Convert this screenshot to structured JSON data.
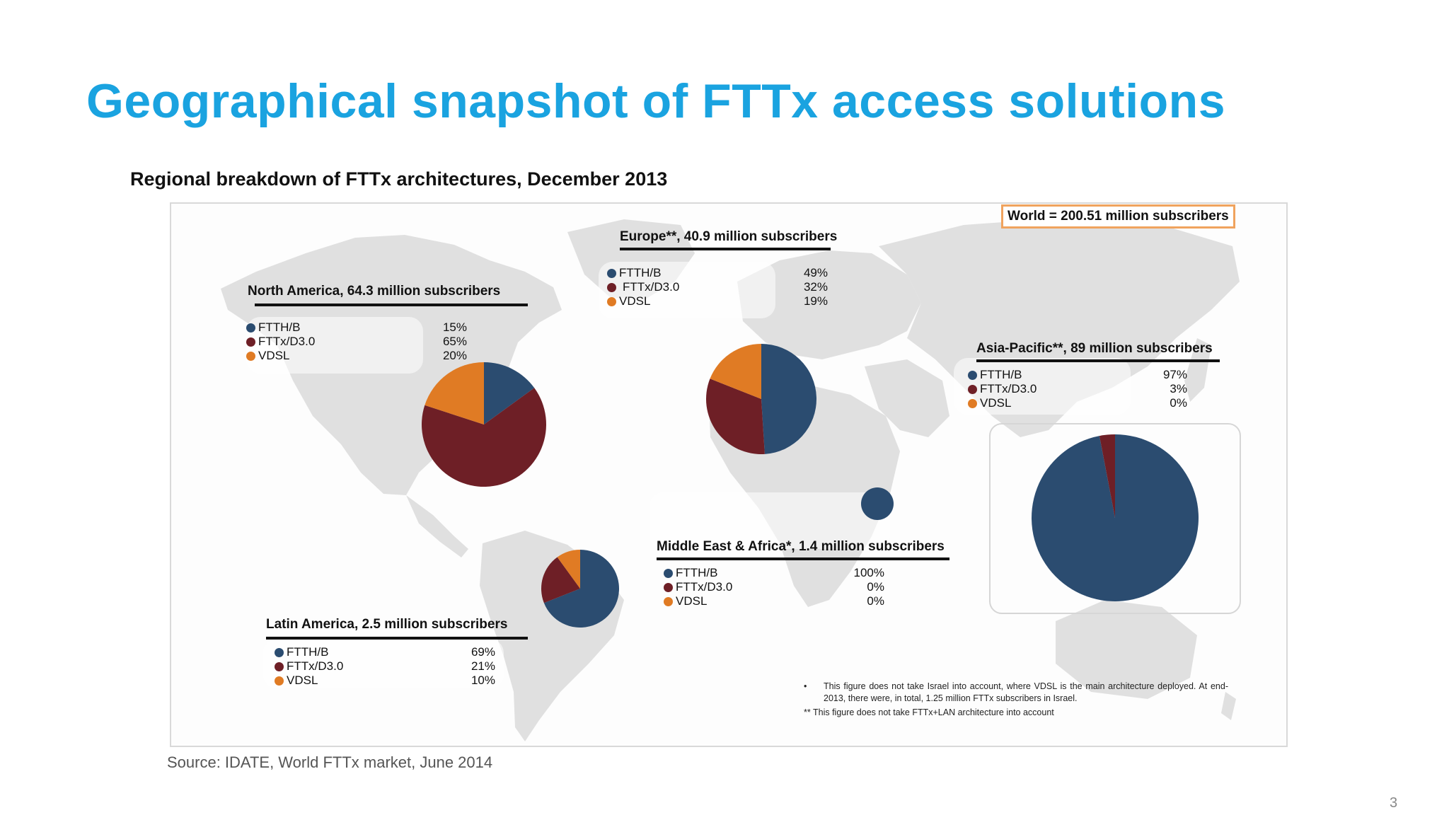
{
  "slide": {
    "title": "Geographical snapshot of FTTx access solutions",
    "subtitle": "Regional breakdown of FTTx architectures, December 2013",
    "world_total": "World = 200.51 million subscribers",
    "source": "Source: IDATE, World FTTx market, June 2014",
    "page_number": "3",
    "notes": {
      "note1_bullet": "•",
      "note1": "This figure does not take Israel into account, where VDSL is the main architecture deployed. At end-2013, there were, in total, 1.25 million FTTx subscribers in Israel.",
      "note2": "** This figure does not take FTTx+LAN architecture into account"
    }
  },
  "colors": {
    "FTTH/B": "#2b4c70",
    "FTTx/D3.0": "#6e1f26",
    "VDSL": "#e07b24",
    "title": "#1aa3e0",
    "map_land": "#dedede"
  },
  "legend_labels": [
    "FTTH/B",
    "FTTx/D3.0",
    "VDSL"
  ],
  "chart_data": [
    {
      "type": "pie",
      "title": "North America, 64.3 million subscribers",
      "categories": [
        "FTTH/B",
        "FTTx/D3.0",
        "VDSL"
      ],
      "values": [
        15,
        65,
        20
      ],
      "labels": [
        "15%",
        "65%",
        "20%"
      ]
    },
    {
      "type": "pie",
      "title": "Europe**, 40.9 million subscribers",
      "categories": [
        "FTTH/B",
        "FTTx/D3.0",
        "VDSL"
      ],
      "values": [
        49,
        32,
        19
      ],
      "labels": [
        "49%",
        "32%",
        "19%"
      ]
    },
    {
      "type": "pie",
      "title": "Asia-Pacific**, 89 million subscribers",
      "categories": [
        "FTTH/B",
        "FTTx/D3.0",
        "VDSL"
      ],
      "values": [
        97,
        3,
        0
      ],
      "labels": [
        "97%",
        "3%",
        "0%"
      ]
    },
    {
      "type": "pie",
      "title": "Middle East & Africa*, 1.4 million subscribers",
      "categories": [
        "FTTH/B",
        "FTTx/D3.0",
        "VDSL"
      ],
      "values": [
        100,
        0,
        0
      ],
      "labels": [
        "100%",
        "0%",
        "0%"
      ]
    },
    {
      "type": "pie",
      "title": "Latin America, 2.5 million subscribers",
      "categories": [
        "FTTH/B",
        "FTTx/D3.0",
        "VDSL"
      ],
      "values": [
        69,
        21,
        10
      ],
      "labels": [
        "69%",
        "21%",
        "10%"
      ]
    }
  ]
}
